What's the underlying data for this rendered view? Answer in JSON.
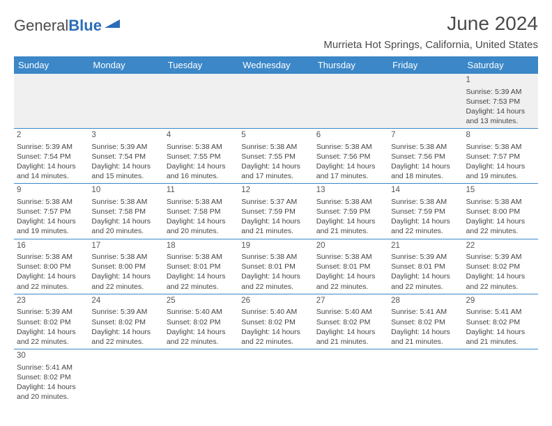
{
  "header": {
    "logo_general": "General",
    "logo_blue": "Blue",
    "month_title": "June 2024",
    "location": "Murrieta Hot Springs, California, United States"
  },
  "colors": {
    "header_bg": "#3b87c8",
    "border": "#3b87c8",
    "alt_row_bg": "#f0f0f0",
    "logo_accent": "#2a6db8"
  },
  "weekdays": [
    "Sunday",
    "Monday",
    "Tuesday",
    "Wednesday",
    "Thursday",
    "Friday",
    "Saturday"
  ],
  "weeks": [
    [
      null,
      null,
      null,
      null,
      null,
      null,
      {
        "day": "1",
        "sunrise": "Sunrise: 5:39 AM",
        "sunset": "Sunset: 7:53 PM",
        "d1": "Daylight: 14 hours",
        "d2": "and 13 minutes."
      }
    ],
    [
      {
        "day": "2",
        "sunrise": "Sunrise: 5:39 AM",
        "sunset": "Sunset: 7:54 PM",
        "d1": "Daylight: 14 hours",
        "d2": "and 14 minutes."
      },
      {
        "day": "3",
        "sunrise": "Sunrise: 5:39 AM",
        "sunset": "Sunset: 7:54 PM",
        "d1": "Daylight: 14 hours",
        "d2": "and 15 minutes."
      },
      {
        "day": "4",
        "sunrise": "Sunrise: 5:38 AM",
        "sunset": "Sunset: 7:55 PM",
        "d1": "Daylight: 14 hours",
        "d2": "and 16 minutes."
      },
      {
        "day": "5",
        "sunrise": "Sunrise: 5:38 AM",
        "sunset": "Sunset: 7:55 PM",
        "d1": "Daylight: 14 hours",
        "d2": "and 17 minutes."
      },
      {
        "day": "6",
        "sunrise": "Sunrise: 5:38 AM",
        "sunset": "Sunset: 7:56 PM",
        "d1": "Daylight: 14 hours",
        "d2": "and 17 minutes."
      },
      {
        "day": "7",
        "sunrise": "Sunrise: 5:38 AM",
        "sunset": "Sunset: 7:56 PM",
        "d1": "Daylight: 14 hours",
        "d2": "and 18 minutes."
      },
      {
        "day": "8",
        "sunrise": "Sunrise: 5:38 AM",
        "sunset": "Sunset: 7:57 PM",
        "d1": "Daylight: 14 hours",
        "d2": "and 19 minutes."
      }
    ],
    [
      {
        "day": "9",
        "sunrise": "Sunrise: 5:38 AM",
        "sunset": "Sunset: 7:57 PM",
        "d1": "Daylight: 14 hours",
        "d2": "and 19 minutes."
      },
      {
        "day": "10",
        "sunrise": "Sunrise: 5:38 AM",
        "sunset": "Sunset: 7:58 PM",
        "d1": "Daylight: 14 hours",
        "d2": "and 20 minutes."
      },
      {
        "day": "11",
        "sunrise": "Sunrise: 5:38 AM",
        "sunset": "Sunset: 7:58 PM",
        "d1": "Daylight: 14 hours",
        "d2": "and 20 minutes."
      },
      {
        "day": "12",
        "sunrise": "Sunrise: 5:37 AM",
        "sunset": "Sunset: 7:59 PM",
        "d1": "Daylight: 14 hours",
        "d2": "and 21 minutes."
      },
      {
        "day": "13",
        "sunrise": "Sunrise: 5:38 AM",
        "sunset": "Sunset: 7:59 PM",
        "d1": "Daylight: 14 hours",
        "d2": "and 21 minutes."
      },
      {
        "day": "14",
        "sunrise": "Sunrise: 5:38 AM",
        "sunset": "Sunset: 7:59 PM",
        "d1": "Daylight: 14 hours",
        "d2": "and 22 minutes."
      },
      {
        "day": "15",
        "sunrise": "Sunrise: 5:38 AM",
        "sunset": "Sunset: 8:00 PM",
        "d1": "Daylight: 14 hours",
        "d2": "and 22 minutes."
      }
    ],
    [
      {
        "day": "16",
        "sunrise": "Sunrise: 5:38 AM",
        "sunset": "Sunset: 8:00 PM",
        "d1": "Daylight: 14 hours",
        "d2": "and 22 minutes."
      },
      {
        "day": "17",
        "sunrise": "Sunrise: 5:38 AM",
        "sunset": "Sunset: 8:00 PM",
        "d1": "Daylight: 14 hours",
        "d2": "and 22 minutes."
      },
      {
        "day": "18",
        "sunrise": "Sunrise: 5:38 AM",
        "sunset": "Sunset: 8:01 PM",
        "d1": "Daylight: 14 hours",
        "d2": "and 22 minutes."
      },
      {
        "day": "19",
        "sunrise": "Sunrise: 5:38 AM",
        "sunset": "Sunset: 8:01 PM",
        "d1": "Daylight: 14 hours",
        "d2": "and 22 minutes."
      },
      {
        "day": "20",
        "sunrise": "Sunrise: 5:38 AM",
        "sunset": "Sunset: 8:01 PM",
        "d1": "Daylight: 14 hours",
        "d2": "and 22 minutes."
      },
      {
        "day": "21",
        "sunrise": "Sunrise: 5:39 AM",
        "sunset": "Sunset: 8:01 PM",
        "d1": "Daylight: 14 hours",
        "d2": "and 22 minutes."
      },
      {
        "day": "22",
        "sunrise": "Sunrise: 5:39 AM",
        "sunset": "Sunset: 8:02 PM",
        "d1": "Daylight: 14 hours",
        "d2": "and 22 minutes."
      }
    ],
    [
      {
        "day": "23",
        "sunrise": "Sunrise: 5:39 AM",
        "sunset": "Sunset: 8:02 PM",
        "d1": "Daylight: 14 hours",
        "d2": "and 22 minutes."
      },
      {
        "day": "24",
        "sunrise": "Sunrise: 5:39 AM",
        "sunset": "Sunset: 8:02 PM",
        "d1": "Daylight: 14 hours",
        "d2": "and 22 minutes."
      },
      {
        "day": "25",
        "sunrise": "Sunrise: 5:40 AM",
        "sunset": "Sunset: 8:02 PM",
        "d1": "Daylight: 14 hours",
        "d2": "and 22 minutes."
      },
      {
        "day": "26",
        "sunrise": "Sunrise: 5:40 AM",
        "sunset": "Sunset: 8:02 PM",
        "d1": "Daylight: 14 hours",
        "d2": "and 22 minutes."
      },
      {
        "day": "27",
        "sunrise": "Sunrise: 5:40 AM",
        "sunset": "Sunset: 8:02 PM",
        "d1": "Daylight: 14 hours",
        "d2": "and 21 minutes."
      },
      {
        "day": "28",
        "sunrise": "Sunrise: 5:41 AM",
        "sunset": "Sunset: 8:02 PM",
        "d1": "Daylight: 14 hours",
        "d2": "and 21 minutes."
      },
      {
        "day": "29",
        "sunrise": "Sunrise: 5:41 AM",
        "sunset": "Sunset: 8:02 PM",
        "d1": "Daylight: 14 hours",
        "d2": "and 21 minutes."
      }
    ],
    [
      {
        "day": "30",
        "sunrise": "Sunrise: 5:41 AM",
        "sunset": "Sunset: 8:02 PM",
        "d1": "Daylight: 14 hours",
        "d2": "and 20 minutes."
      },
      null,
      null,
      null,
      null,
      null,
      null
    ]
  ]
}
